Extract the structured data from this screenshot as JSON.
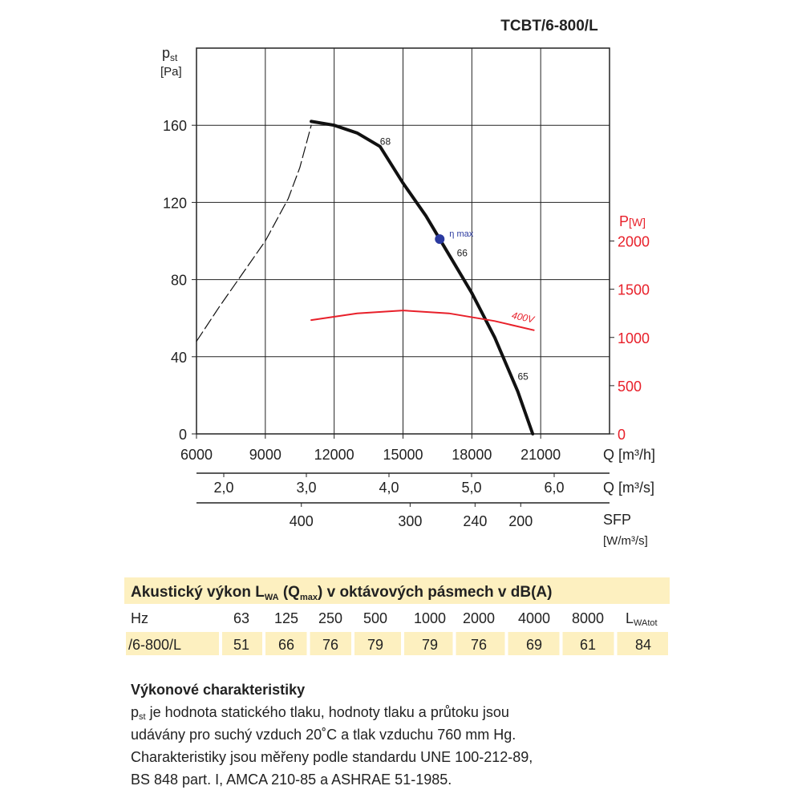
{
  "chart_data": {
    "type": "line",
    "title": "TCBT/6-800/L",
    "y_label": {
      "main": "p",
      "sub": "st",
      "unit": "[Pa]"
    },
    "y2_label": {
      "main": "P",
      "unit": "[W]"
    },
    "x_label": "Q [m³/h]",
    "xlim": [
      6000,
      24000
    ],
    "xticks": [
      6000,
      9000,
      12000,
      15000,
      18000,
      21000
    ],
    "ylim": [
      0,
      200
    ],
    "yticks": [
      0,
      40,
      80,
      120,
      160
    ],
    "y2lim": [
      0,
      4000
    ],
    "y2ticks": [
      0,
      500,
      1000,
      1500,
      2000
    ],
    "y2color": "#e8202a",
    "grid": true,
    "series": [
      {
        "color": "#111111",
        "dashed": false,
        "width": 4,
        "x": [
          11000,
          12000,
          13000,
          14000,
          15000,
          16000,
          17000,
          18000,
          19000,
          20000,
          20650
        ],
        "values": [
          162,
          160,
          156,
          149,
          130,
          113,
          93,
          73,
          50,
          22,
          0
        ]
      },
      {
        "color": "#111111",
        "dashed": true,
        "width": 1.2,
        "x": [
          6000,
          7000,
          8000,
          9000,
          10000,
          10500,
          11000
        ],
        "values": [
          48,
          66,
          83,
          100,
          122,
          138,
          160
        ]
      },
      {
        "color": "#e8202a",
        "dashed": false,
        "width": 2,
        "axis": "y2",
        "x": [
          11000,
          13000,
          15000,
          17000,
          19000,
          20700
        ],
        "values": [
          1180,
          1250,
          1280,
          1250,
          1170,
          1075
        ]
      }
    ],
    "annotations": [
      {
        "text": "68",
        "x": 14230,
        "y": 150
      },
      {
        "text": "66",
        "x": 17580,
        "y": 92
      },
      {
        "text": "65",
        "x": 20230,
        "y": 28
      },
      {
        "text": "400V",
        "x": 20200,
        "y": 1175,
        "axis": "y2",
        "color": "#e8202a"
      }
    ],
    "marker": {
      "label": "η max",
      "x": 16600,
      "y": 101,
      "color": "#2b3aa0"
    },
    "x2": {
      "label": "Q [m³/s]",
      "xlim": [
        1.67,
        6.67
      ],
      "xticks": [
        {
          "value": 2,
          "label": "2,0"
        },
        {
          "value": 3,
          "label": "3,0"
        },
        {
          "value": 4,
          "label": "4,0"
        },
        {
          "value": 5,
          "label": "5,0"
        },
        {
          "value": 6,
          "label": "6,0"
        }
      ]
    },
    "x3": {
      "label": "SFP",
      "unit": "[W/m³/s]",
      "ticks": [
        {
          "value": 400,
          "q": 10570
        },
        {
          "value": 300,
          "q": 15310
        },
        {
          "value": 240,
          "q": 18140
        },
        {
          "value": 200,
          "q": 20130
        }
      ]
    }
  },
  "table": {
    "title_parts": [
      "Akustický výkon L",
      "WA",
      " (Q",
      "max",
      ") v oktávových pásmech v dB(A)"
    ],
    "header": [
      "Hz",
      "63",
      "125",
      "250",
      "500",
      "1000",
      "2000",
      "4000",
      "8000"
    ],
    "header_last": [
      "L",
      "WAtot"
    ],
    "rows": [
      [
        "/6-800/L",
        51,
        66,
        76,
        79,
        79,
        76,
        69,
        61,
        84
      ]
    ]
  },
  "notes": {
    "heading": "Výkonové charakteristiky",
    "first_line": [
      "p",
      "st",
      " je hodnota statického tlaku, hodnoty tlaku a průtoku jsou"
    ],
    "lines": [
      "udávány pro suchý vzduch 20˚C a tlak vzduchu 760 mm Hg.",
      "Charakteristiky jsou měřeny podle standardu UNE 100-212-89,",
      "BS 848 part. I, AMCA 210-85 a ASHRAE 51-1985."
    ]
  }
}
